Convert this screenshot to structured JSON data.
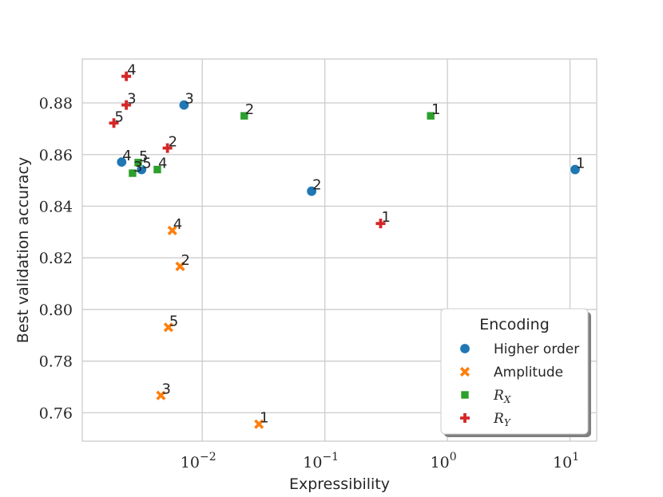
{
  "chart_data": {
    "type": "scatter",
    "title": "",
    "xlabel": "Expressibility",
    "ylabel": "Best validation accuracy",
    "xscale": "log",
    "xlim": [
      0.00105,
      16.5
    ],
    "ylim": [
      0.749,
      0.897
    ],
    "xticks": [
      {
        "value": 0.01,
        "base": "10",
        "exp": "−2"
      },
      {
        "value": 0.1,
        "base": "10",
        "exp": "−1"
      },
      {
        "value": 1,
        "base": "10",
        "exp": "0"
      },
      {
        "value": 10,
        "base": "10",
        "exp": "1"
      }
    ],
    "yticks": [
      {
        "value": 0.76,
        "label": "0.76"
      },
      {
        "value": 0.78,
        "label": "0.78"
      },
      {
        "value": 0.8,
        "label": "0.80"
      },
      {
        "value": 0.82,
        "label": "0.82"
      },
      {
        "value": 0.84,
        "label": "0.84"
      },
      {
        "value": 0.86,
        "label": "0.86"
      },
      {
        "value": 0.88,
        "label": "0.88"
      }
    ],
    "grid": true,
    "legend": {
      "title": "Encoding",
      "position": "bottom-right"
    },
    "series": [
      {
        "name": "Higher order",
        "base": "",
        "sub": "",
        "marker": "circle",
        "color": "#1f77b4",
        "points": [
          {
            "x": 11.0,
            "y": 0.8542,
            "label": "1"
          },
          {
            "x": 0.078,
            "y": 0.8458,
            "label": "2"
          },
          {
            "x": 0.0071,
            "y": 0.8792,
            "label": "3"
          },
          {
            "x": 0.0022,
            "y": 0.8571,
            "label": "4"
          },
          {
            "x": 0.0032,
            "y": 0.8542,
            "label": "5"
          }
        ]
      },
      {
        "name": "Amplitude",
        "base": "",
        "sub": "",
        "marker": "x",
        "color": "#ff7f0e",
        "points": [
          {
            "x": 0.029,
            "y": 0.7556,
            "label": "1"
          },
          {
            "x": 0.0066,
            "y": 0.8167,
            "label": "2"
          },
          {
            "x": 0.0046,
            "y": 0.7667,
            "label": "3"
          },
          {
            "x": 0.0057,
            "y": 0.8306,
            "label": "4"
          },
          {
            "x": 0.0053,
            "y": 0.7931,
            "label": "5"
          }
        ]
      },
      {
        "name": "R_X",
        "base": "R",
        "sub": "X",
        "marker": "square",
        "color": "#2ca02c",
        "points": [
          {
            "x": 0.73,
            "y": 0.875,
            "label": "1"
          },
          {
            "x": 0.022,
            "y": 0.875,
            "label": "2"
          },
          {
            "x": 0.0027,
            "y": 0.8528,
            "label": "3"
          },
          {
            "x": 0.0043,
            "y": 0.8542,
            "label": "4"
          },
          {
            "x": 0.003,
            "y": 0.8569,
            "label": "5"
          }
        ]
      },
      {
        "name": "R_Y",
        "base": "R",
        "sub": "Y",
        "marker": "plus",
        "color": "#d62728",
        "points": [
          {
            "x": 0.285,
            "y": 0.8333,
            "label": "1"
          },
          {
            "x": 0.0052,
            "y": 0.8625,
            "label": "2"
          },
          {
            "x": 0.0024,
            "y": 0.8792,
            "label": "3"
          },
          {
            "x": 0.0024,
            "y": 0.8903,
            "label": "4"
          },
          {
            "x": 0.0019,
            "y": 0.8722,
            "label": "5"
          }
        ]
      }
    ]
  }
}
